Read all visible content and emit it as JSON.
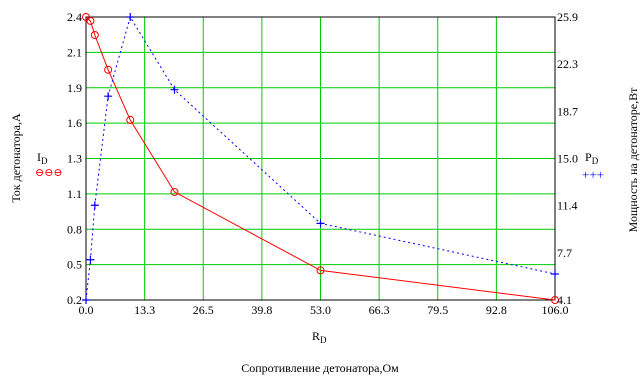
{
  "chart_data": {
    "type": "line",
    "x_ticks": [
      "0.0",
      "13.3",
      "26.5",
      "39.8",
      "53.0",
      "66.3",
      "79.5",
      "92.8",
      "106.0"
    ],
    "y_left_ticks": [
      "0.2",
      "0.5",
      "0.8",
      "1.1",
      "1.3",
      "1.6",
      "1.9",
      "2.1",
      "2.4"
    ],
    "y_right_ticks": [
      "4.1",
      "7.7",
      "11.4",
      "15.0",
      "18.7",
      "22.3",
      "25.9"
    ],
    "xlim": [
      0,
      106
    ],
    "ylim_left": [
      0.2,
      2.4
    ],
    "ylim_right": [
      4.1,
      25.9
    ],
    "x_label": {
      "main": "R",
      "sub": "D"
    },
    "bottom_label": "Сопротивление детонатора,Ом",
    "y_left_label": "Ток детонатора,А",
    "y_right_label": "Мощность на детонаторе,Вт",
    "legend_left": {
      "main": "I",
      "sub": "D",
      "marker": "⊖⊖⊖"
    },
    "legend_right": {
      "main": "P",
      "sub": "D",
      "marker": "+++"
    },
    "grid": true,
    "series": [
      {
        "name": "I_D",
        "axis": "left",
        "color": "#ff0000",
        "style": "solid",
        "marker": "circle",
        "x": [
          0,
          1,
          2,
          5,
          10,
          20,
          53,
          106
        ],
        "y": [
          2.4,
          2.37,
          2.26,
          1.99,
          1.6,
          1.04,
          0.43,
          0.2
        ]
      },
      {
        "name": "P_D",
        "axis": "right",
        "color": "#0000ff",
        "style": "dotted",
        "marker": "plus",
        "x": [
          0,
          1,
          2,
          5,
          10,
          20,
          53,
          106
        ],
        "y": [
          4.1,
          7.2,
          11.4,
          19.8,
          25.9,
          20.3,
          10.0,
          6.1
        ]
      }
    ]
  }
}
